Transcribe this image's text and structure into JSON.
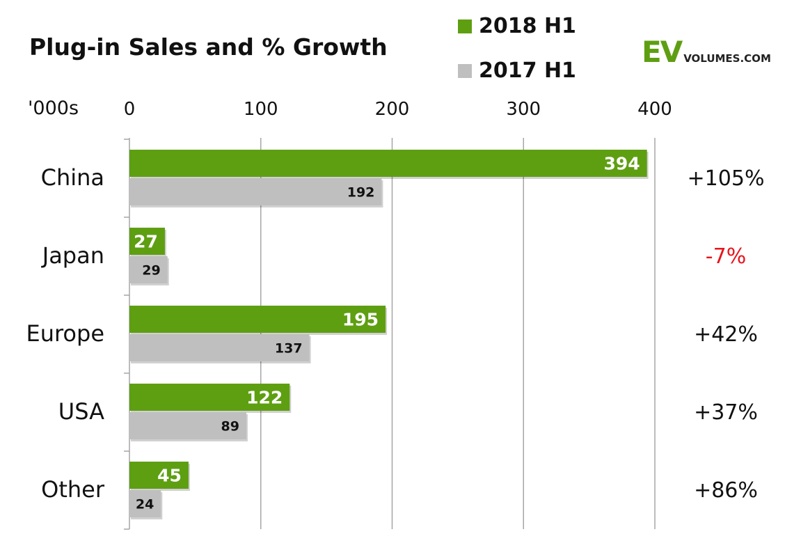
{
  "chart_data": {
    "type": "bar",
    "orientation": "horizontal",
    "title": "Plug-in Sales and % Growth",
    "unit_label": "'000s",
    "categories": [
      "China",
      "Japan",
      "Europe",
      "USA",
      "Other"
    ],
    "series": [
      {
        "name": "2018 H1",
        "color": "#5e9f12",
        "label_color": "#ffffff",
        "values": [
          394,
          27,
          195,
          122,
          45
        ]
      },
      {
        "name": "2017 H1",
        "color": "#bfbfbf",
        "label_color": "#111111",
        "values": [
          192,
          29,
          137,
          89,
          24
        ]
      }
    ],
    "growth_labels": [
      "+105%",
      "-7%",
      "+42%",
      "+37%",
      "+86%"
    ],
    "growth_colors": [
      "#111111",
      "#e8141c",
      "#111111",
      "#111111",
      "#111111"
    ],
    "xlim": [
      0,
      400
    ],
    "xticks": [
      0,
      100,
      200,
      300,
      400
    ],
    "grid": true,
    "legend_position": "top"
  },
  "logo": {
    "ev": "EV",
    "domain": "VOLUMES.COM",
    "ev_color": "#5e9f12"
  }
}
